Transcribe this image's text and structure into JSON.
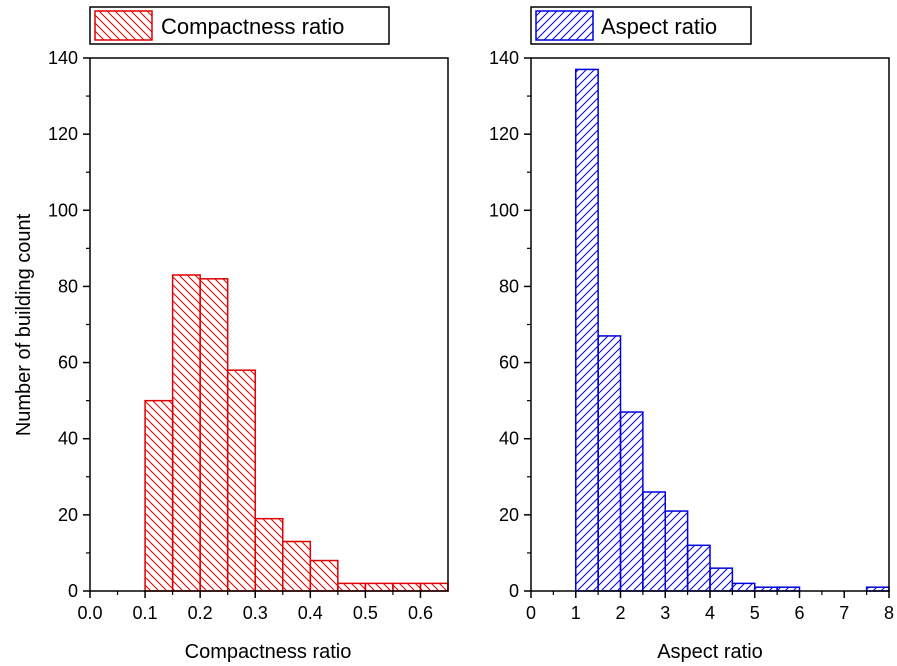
{
  "chart_data": [
    {
      "type": "bar",
      "histogram": true,
      "title": "",
      "xlabel": "Compactness ratio",
      "ylabel": "Number of building count",
      "xlim": [
        0.0,
        0.65
      ],
      "ylim": [
        0,
        140
      ],
      "x_ticks": [
        "0.0",
        "0.1",
        "0.2",
        "0.3",
        "0.4",
        "0.5",
        "0.6"
      ],
      "y_ticks": [
        "0",
        "20",
        "40",
        "60",
        "80",
        "100",
        "120",
        "140"
      ],
      "bin_edges": [
        0.1,
        0.15,
        0.2,
        0.25,
        0.3,
        0.35,
        0.4,
        0.45,
        0.5,
        0.55,
        0.6,
        0.65
      ],
      "values": [
        50,
        83,
        82,
        58,
        19,
        13,
        8,
        2,
        2,
        2,
        2
      ],
      "legend": "Compactness ratio",
      "legend_position": "top-left",
      "color": "#e00000",
      "fill": "hatch-backslash",
      "grid": false
    },
    {
      "type": "bar",
      "histogram": true,
      "title": "",
      "xlabel": "Aspect ratio",
      "ylabel": "",
      "xlim": [
        0,
        8
      ],
      "ylim": [
        0,
        140
      ],
      "x_ticks": [
        "0",
        "1",
        "2",
        "3",
        "4",
        "5",
        "6",
        "7",
        "8"
      ],
      "y_ticks": [
        "0",
        "20",
        "40",
        "60",
        "80",
        "100",
        "120",
        "140"
      ],
      "bin_edges": [
        1.0,
        1.5,
        2.0,
        2.5,
        3.0,
        3.5,
        4.0,
        4.5,
        5.0,
        5.5,
        6.0,
        6.5,
        7.0,
        7.5,
        8.0
      ],
      "values": [
        137,
        67,
        47,
        26,
        21,
        12,
        6,
        2,
        1,
        1,
        0,
        0,
        0,
        1
      ],
      "legend": "Aspect ratio",
      "legend_position": "top-left",
      "color": "#0000e0",
      "fill": "hatch-slash",
      "grid": false
    }
  ]
}
